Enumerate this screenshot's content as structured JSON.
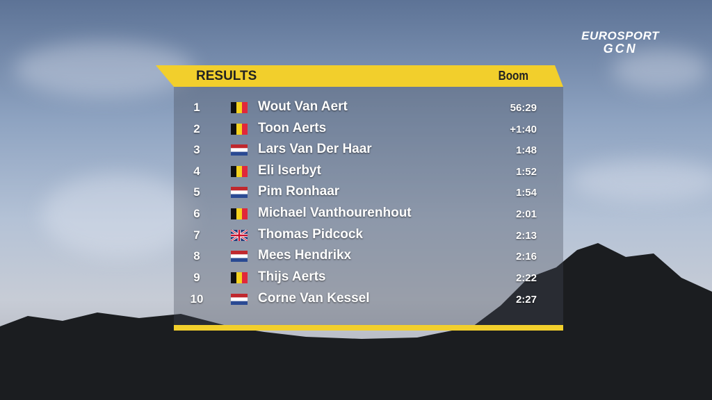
{
  "logo": {
    "brand": "EUROSPORT",
    "sub": "GCN"
  },
  "header": {
    "title": "RESULTS",
    "location": "Boom"
  },
  "table": {
    "rows": [
      [
        "1",
        "Wout Van Aert",
        "56:29"
      ],
      [
        "2",
        "Toon Aerts",
        "+1:40"
      ],
      [
        "3",
        "Lars Van Der Haar",
        "1:48"
      ],
      [
        "4",
        "Eli Iserbyt",
        "1:52"
      ],
      [
        "5",
        "Pim Ronhaar",
        "1:54"
      ],
      [
        "6",
        "Michael Vanthourenhout",
        "2:01"
      ],
      [
        "7",
        "Thomas Pidcock",
        "2:13"
      ],
      [
        "8",
        "Mees Hendrikx",
        "2:16"
      ],
      [
        "9",
        "Thijs Aerts",
        "2:22"
      ],
      [
        "10",
        "Corne Van Kessel",
        "2:27"
      ]
    ]
  }
}
